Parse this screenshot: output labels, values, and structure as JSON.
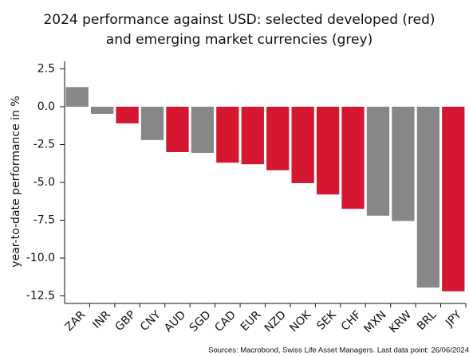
{
  "chart_data": {
    "type": "bar",
    "title": [
      "2024 performance against USD: selected developed (red)",
      "and emerging market currencies (grey)"
    ],
    "y_label": "year-to-date performance in %",
    "source": "Sources: Macrobond, Swiss Life Asset Managers. Last data point: 26/06/2024",
    "categories": [
      "ZAR",
      "INR",
      "GBP",
      "CNY",
      "AUD",
      "SGD",
      "CAD",
      "EUR",
      "NZD",
      "NOK",
      "SEK",
      "CHF",
      "MXN",
      "KRW",
      "BRL",
      "JPY"
    ],
    "values": [
      1.3,
      -0.47,
      -1.1,
      -2.2,
      -3.0,
      -3.05,
      -3.7,
      -3.8,
      -4.2,
      -5.05,
      -5.8,
      -6.75,
      -7.2,
      -7.55,
      -11.95,
      -12.2
    ],
    "colors": [
      "#878787",
      "#878787",
      "#d5172f",
      "#878787",
      "#d5172f",
      "#878787",
      "#d5172f",
      "#d5172f",
      "#d5172f",
      "#d5172f",
      "#d5172f",
      "#d5172f",
      "#878787",
      "#878787",
      "#878787",
      "#d5172f"
    ],
    "ylim": [
      -13,
      3
    ],
    "yticks": [
      2.5,
      {
        "value": 0,
        "label": "0.0"
      },
      -2.5,
      {
        "value": -5,
        "label": "-5.0"
      },
      -7.5,
      {
        "value": -10,
        "label": "-10.0"
      },
      -12.5
    ],
    "grid": false
  }
}
